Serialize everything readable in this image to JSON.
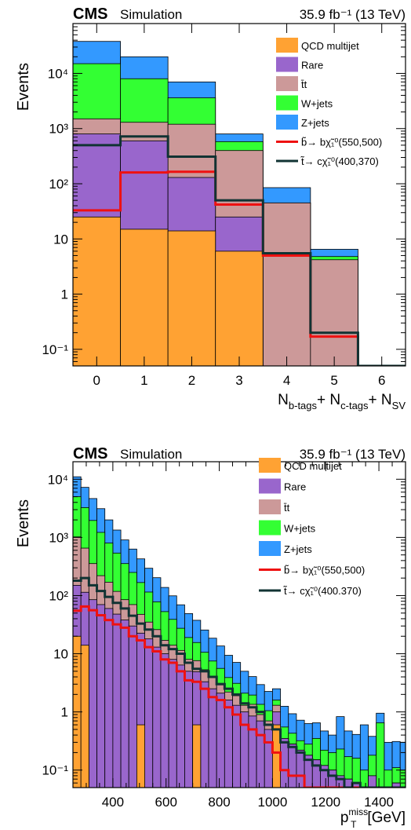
{
  "colors": {
    "qcd": "#ffa233",
    "rare": "#9966cc",
    "ttbar": "#cc9999",
    "wjets": "#33ff33",
    "zjets": "#3399ff",
    "sbottom": "#ee1111",
    "stop": "#113333"
  },
  "chart_data": [
    {
      "type": "bar",
      "stacked": true,
      "log_y": true,
      "header_left_bold": "CMS",
      "header_left": "Simulation",
      "header_right": "35.9 fb⁻¹ (13 TeV)",
      "ylabel": "Events",
      "xlabel_parts": [
        "N",
        "b-tags",
        "+ N",
        "c-tags",
        "+ N",
        "SV"
      ],
      "xlim": [
        -0.5,
        6.5
      ],
      "ylim": [
        0.05,
        80000
      ],
      "x_ticks": [
        "0",
        "1",
        "2",
        "3",
        "4",
        "5",
        "6"
      ],
      "y_ticks": [
        "10⁻¹",
        "1",
        "10",
        "10²",
        "10³",
        "10⁴"
      ],
      "categories": [
        0,
        1,
        2,
        3,
        4,
        5,
        6
      ],
      "series": [
        {
          "key": "qcd",
          "name": "QCD multijet",
          "kind": "stack",
          "values": [
            25,
            15,
            14,
            6,
            0,
            0,
            0
          ]
        },
        {
          "key": "rare",
          "name": "Rare",
          "kind": "stack",
          "values": [
            775,
            585,
            116,
            19,
            0,
            0,
            0
          ]
        },
        {
          "key": "ttbar",
          "name": "t̄t",
          "kind": "stack",
          "values": [
            700,
            700,
            1070,
            375,
            45,
            4.2,
            0
          ]
        },
        {
          "key": "wjets",
          "name": "W+jets",
          "kind": "stack",
          "values": [
            13500,
            6700,
            2400,
            180,
            0,
            0.6,
            0
          ]
        },
        {
          "key": "zjets",
          "name": "Z+jets",
          "kind": "stack",
          "values": [
            23000,
            12000,
            3400,
            220,
            40,
            1.7,
            0
          ]
        },
        {
          "key": "sbottom",
          "name": "b̃→ bχ̃₁⁰(550,500)",
          "kind": "line",
          "values": [
            33,
            160,
            165,
            42,
            5,
            0.17,
            0.05
          ]
        },
        {
          "key": "stop",
          "name": "t̃→ cχ̃₁⁰(400,370)",
          "kind": "line",
          "values": [
            500,
            720,
            310,
            50,
            5.5,
            0.2,
            0.05
          ]
        }
      ]
    },
    {
      "type": "bar",
      "stacked": true,
      "log_y": true,
      "header_left_bold": "CMS",
      "header_left": "Simulation",
      "header_right": "35.9 fb⁻¹ (13 TeV)",
      "ylabel": "Events",
      "xlabel_main": "p",
      "xlabel_sub": "T",
      "xlabel_sup": "miss",
      "xlabel_unit": "[GeV]",
      "xlim": [
        250,
        1500
      ],
      "ylim": [
        0.05,
        20000
      ],
      "x_ticks": [
        "400",
        "600",
        "800",
        "1000",
        "1200",
        "1400"
      ],
      "y_ticks": [
        "10⁻¹",
        "1",
        "10",
        "10²",
        "10³",
        "10⁴"
      ],
      "bin_edges_start": 250,
      "bin_width": 30,
      "series": [
        {
          "key": "qcd",
          "name": "QCD multijet",
          "kind": "stack",
          "values": [
            20,
            14,
            0,
            0,
            0,
            0,
            0,
            0,
            0.6,
            0,
            0,
            0,
            0,
            0,
            0,
            0.6,
            0,
            0,
            0,
            0,
            0,
            0,
            0,
            0,
            0,
            0.6,
            0,
            0,
            0,
            0,
            0,
            0,
            0,
            0,
            0,
            0,
            0,
            0,
            0,
            0,
            0,
            0
          ]
        },
        {
          "key": "rare",
          "name": "Rare",
          "kind": "stack",
          "values": [
            130,
            100,
            85,
            70,
            60,
            48,
            38,
            30,
            22,
            18,
            13,
            10,
            8,
            6.4,
            5,
            4.3,
            3.3,
            2.5,
            2.1,
            1.6,
            1.3,
            1.0,
            0.85,
            0.7,
            0.5,
            0.4,
            0.35,
            0.28,
            0.22,
            0.18,
            0.15,
            0.12,
            0.1,
            0.08,
            0.07,
            0.06,
            0.05,
            0.08,
            0.05,
            0.05,
            0.06,
            0.05
          ]
        },
        {
          "key": "ttbar",
          "name": "t̄t",
          "kind": "stack",
          "values": [
            870,
            540,
            270,
            150,
            110,
            70,
            47,
            40,
            25,
            17,
            13,
            7,
            6,
            5,
            3,
            2.7,
            2,
            1.5,
            1,
            0.6,
            0.6,
            0.3,
            0.5,
            0.2,
            0.2,
            0.3,
            0,
            0,
            0,
            0,
            0,
            0,
            0,
            0,
            0,
            0,
            0,
            0,
            0,
            0,
            0,
            0
          ]
        },
        {
          "key": "wjets",
          "name": "W+jets",
          "kind": "stack",
          "values": [
            4000,
            2600,
            1600,
            1000,
            630,
            420,
            270,
            180,
            120,
            80,
            52,
            36,
            25,
            16,
            11,
            8,
            5.3,
            3.5,
            2.5,
            1.7,
            1.2,
            0.8,
            0.6,
            0.45,
            0.35,
            0.3,
            0.2,
            0.15,
            0.1,
            0.1,
            0.2,
            0.1,
            0.1,
            0.15,
            0.1,
            0.1,
            0.05,
            0.1,
            0.6,
            0.05,
            0.05,
            0.05
          ]
        },
        {
          "key": "zjets",
          "name": "Z+jets",
          "kind": "stack",
          "values": [
            6000,
            4000,
            2700,
            1900,
            1200,
            800,
            550,
            380,
            260,
            180,
            125,
            85,
            60,
            42,
            30,
            22,
            15,
            11,
            8,
            5.5,
            4,
            2.9,
            2.1,
            1.6,
            1.2,
            0.9,
            0.7,
            0.5,
            0.4,
            0.35,
            0.3,
            0.25,
            0.2,
            0.6,
            0.3,
            0.25,
            0.5,
            0.2,
            0.3,
            0.2,
            0.2,
            0.2
          ]
        },
        {
          "key": "sbottom",
          "name": "b̃→ bχ̃₁⁰(550,500)",
          "kind": "line",
          "values": [
            55,
            65,
            56,
            46,
            38,
            32,
            28,
            20,
            17,
            13,
            11,
            8,
            7,
            5,
            3.5,
            3.3,
            2.5,
            1.8,
            1.6,
            1.2,
            0.9,
            0.6,
            0.5,
            0.4,
            0.3,
            0.2,
            0.1,
            0.08,
            0.08,
            0.05,
            0.05,
            0.05,
            0.05,
            0.05,
            0.05,
            0.05,
            0.05,
            0.05,
            0.05,
            0.05,
            0.05,
            0.05
          ]
        },
        {
          "key": "stop",
          "name": "t̃→ cχ̃₁⁰(400.370)",
          "kind": "line",
          "values": [
            180,
            200,
            150,
            120,
            95,
            75,
            60,
            45,
            33,
            26,
            20,
            14,
            12,
            10,
            7,
            5.5,
            5,
            4,
            3,
            2.5,
            2,
            1.4,
            1.2,
            1,
            0.6,
            0.5,
            0.3,
            0.25,
            0.2,
            0.15,
            0.12,
            0.1,
            0.08,
            0.07,
            0.05,
            0.06,
            0.05,
            0.05,
            0.05,
            0.05,
            0.05,
            0.05
          ]
        }
      ]
    }
  ]
}
